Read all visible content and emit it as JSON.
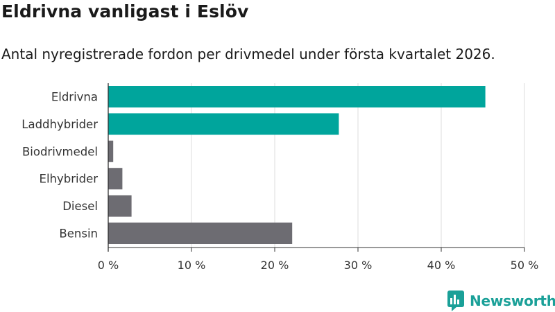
{
  "header": {
    "title": "Eldrivna vanligast i Eslöv",
    "subtitle": "Antal nyregistrerade fordon per drivmedel under första kvartalet 2026."
  },
  "brand": {
    "name": "Newsworthy",
    "icon": "newsworthy-logo-icon"
  },
  "colors": {
    "highlight": "#00a59c",
    "default": "#6d6c72",
    "grid": "#dddddd",
    "axis": "#333333"
  },
  "chart_data": {
    "type": "bar",
    "orientation": "horizontal",
    "categories": [
      "Eldrivna",
      "Laddhybrider",
      "Biodrivmedel",
      "Elhybrider",
      "Diesel",
      "Bensin"
    ],
    "values": [
      45.3,
      27.7,
      0.6,
      1.7,
      2.8,
      22.1
    ],
    "highlighted": [
      true,
      true,
      false,
      false,
      false,
      false
    ],
    "xlim": [
      0,
      50
    ],
    "xticks": [
      0,
      10,
      20,
      30,
      40,
      50
    ],
    "xtick_labels": [
      "0 %",
      "10 %",
      "20 %",
      "30 %",
      "40 %",
      "50 %"
    ],
    "grid": true
  }
}
